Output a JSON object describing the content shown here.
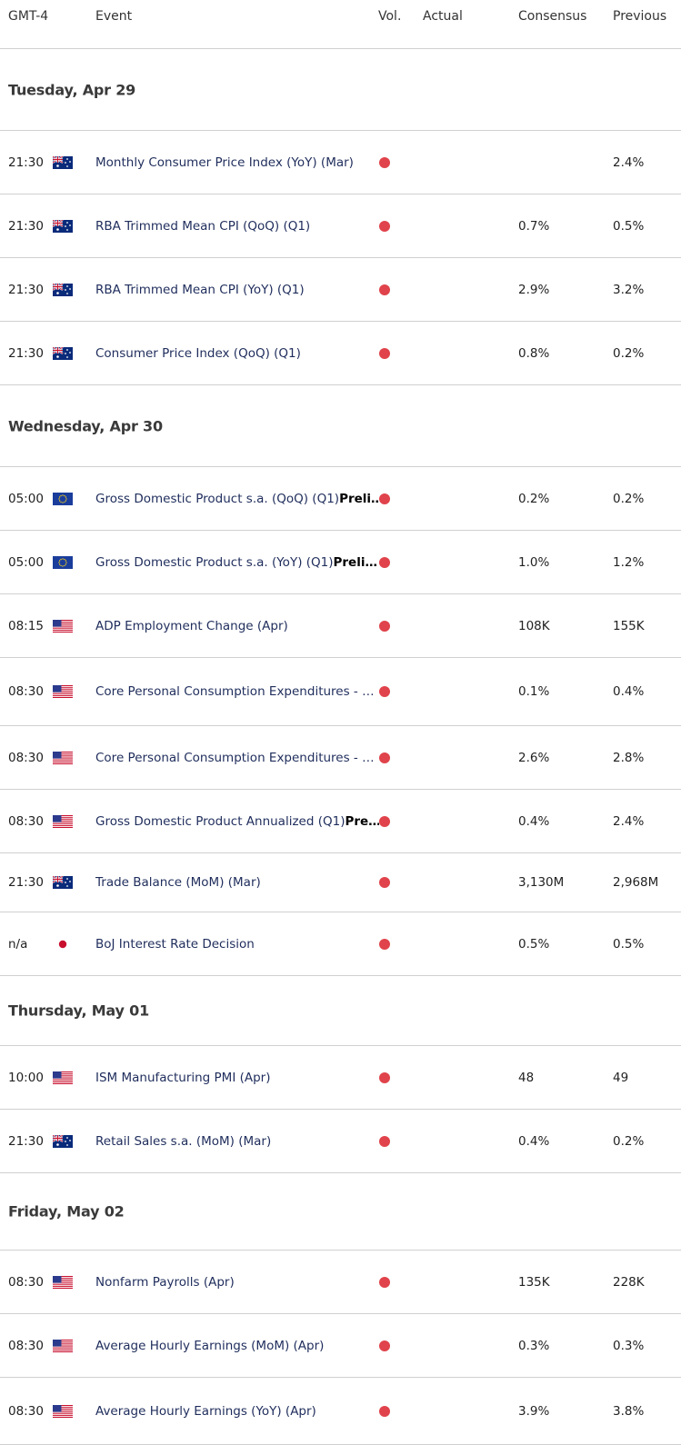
{
  "header": {
    "time": "GMT-4",
    "event": "Event",
    "vol": "Vol.",
    "actual": "Actual",
    "consensus": "Consensus",
    "previous": "Previous"
  },
  "days": [
    {
      "label": "Tuesday, Apr 29",
      "events": [
        {
          "time": "21:30",
          "event": "Monthly Consumer Price Index (YoY) (Mar)",
          "previous": "2.4%"
        },
        {
          "time": "21:30",
          "event": "RBA Trimmed Mean CPI (QoQ) (Q1)",
          "consensus": "0.7%",
          "previous": "0.5%"
        },
        {
          "time": "21:30",
          "event": "RBA Trimmed Mean CPI (YoY) (Q1)",
          "consensus": "2.9%",
          "previous": "3.2%"
        },
        {
          "time": "21:30",
          "event": "Consumer Price Index (QoQ) (Q1)",
          "consensus": "0.8%",
          "previous": "0.2%"
        }
      ]
    },
    {
      "label": "Wednesday, Apr 30",
      "events": [
        {
          "time": "05:00",
          "event": "Gross Domestic Product s.a. (QoQ) (Q1)",
          "note": "Preli…",
          "consensus": "0.2%",
          "previous": "0.2%"
        },
        {
          "time": "05:00",
          "event": "Gross Domestic Product s.a. (YoY) (Q1)",
          "note": "Preli…",
          "consensus": "1.0%",
          "previous": "1.2%"
        },
        {
          "time": "08:15",
          "event": "ADP Employment Change (Apr)",
          "consensus": "108K",
          "previous": "155K"
        },
        {
          "time": "08:30",
          "event": "Core Personal Consumption Expenditures - …",
          "consensus": "0.1%",
          "previous": "0.4%"
        },
        {
          "time": "08:30",
          "event": "Core Personal Consumption Expenditures - …",
          "consensus": "2.6%",
          "previous": "2.8%"
        },
        {
          "time": "08:30",
          "event": "Gross Domestic Product Annualized (Q1)",
          "note": "Pre…",
          "consensus": "0.4%",
          "previous": "2.4%"
        },
        {
          "time": "21:30",
          "event": "Trade Balance (MoM) (Mar)",
          "consensus": "3,130M",
          "previous": "2,968M"
        },
        {
          "time": "n/a",
          "event": "BoJ Interest Rate Decision",
          "consensus": "0.5%",
          "previous": "0.5%"
        }
      ]
    },
    {
      "label": "Thursday, May 01",
      "events": [
        {
          "time": "10:00",
          "event": "ISM Manufacturing PMI (Apr)",
          "consensus": "48",
          "previous": "49"
        },
        {
          "time": "21:30",
          "event": "Retail Sales s.a. (MoM) (Mar)",
          "consensus": "0.4%",
          "previous": "0.2%"
        }
      ]
    },
    {
      "label": "Friday, May 02",
      "events": [
        {
          "time": "08:30",
          "event": "Nonfarm Payrolls (Apr)",
          "consensus": "135K",
          "previous": "228K"
        },
        {
          "time": "08:30",
          "event": "Average Hourly Earnings (MoM) (Apr)",
          "consensus": "0.3%",
          "previous": "0.3%"
        },
        {
          "time": "08:30",
          "event": "Average Hourly Earnings (YoY) (Apr)",
          "consensus": "3.9%",
          "previous": "3.8%"
        }
      ]
    }
  ]
}
